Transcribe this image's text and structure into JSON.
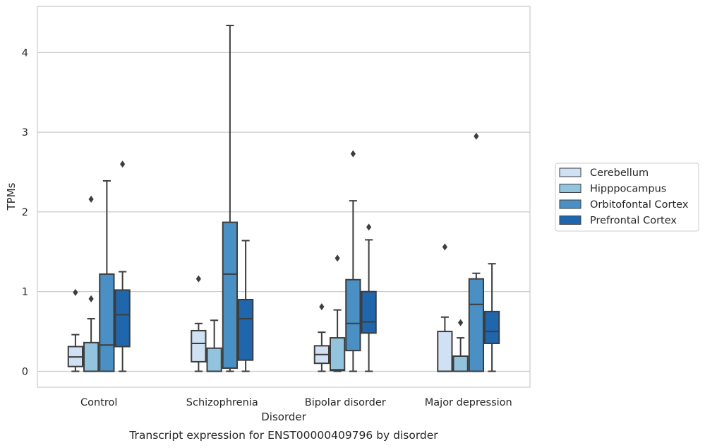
{
  "chart_data": {
    "type": "box",
    "title": "",
    "caption": "Transcript expression for ENST00000409796 by disorder",
    "xlabel": "Disorder",
    "ylabel": "TPMs",
    "ylim": [
      -0.2,
      4.58
    ],
    "yticks": [
      0,
      1,
      2,
      3,
      4
    ],
    "grid": "horizontal",
    "legend_position": "right",
    "categories": [
      "Control",
      "Schizophrenia",
      "Bipolar disorder",
      "Major depression"
    ],
    "series": [
      {
        "name": "Cerebellum",
        "color": "#cfe1f2",
        "boxes": [
          {
            "whisker_low": 0.0,
            "q1": 0.06,
            "median": 0.18,
            "q3": 0.31,
            "whisker_high": 0.46,
            "outliers": [
              0.99
            ]
          },
          {
            "whisker_low": 0.0,
            "q1": 0.12,
            "median": 0.35,
            "q3": 0.51,
            "whisker_high": 0.6,
            "outliers": [
              1.16
            ]
          },
          {
            "whisker_low": 0.0,
            "q1": 0.1,
            "median": 0.21,
            "q3": 0.32,
            "whisker_high": 0.49,
            "outliers": [
              0.81
            ]
          },
          {
            "whisker_low": 0.0,
            "q1": 0.0,
            "median": 0.0,
            "q3": 0.5,
            "whisker_high": 0.68,
            "outliers": [
              1.56
            ]
          }
        ]
      },
      {
        "name": "Hipppocampus",
        "color": "#93c4de",
        "boxes": [
          {
            "whisker_low": 0.0,
            "q1": 0.0,
            "median": 0.0,
            "q3": 0.36,
            "whisker_high": 0.66,
            "outliers": [
              0.91,
              2.16
            ]
          },
          {
            "whisker_low": 0.0,
            "q1": 0.0,
            "median": 0.0,
            "q3": 0.29,
            "whisker_high": 0.64,
            "outliers": []
          },
          {
            "whisker_low": 0.0,
            "q1": 0.01,
            "median": 0.02,
            "q3": 0.42,
            "whisker_high": 0.77,
            "outliers": [
              1.42
            ]
          },
          {
            "whisker_low": 0.0,
            "q1": 0.0,
            "median": 0.0,
            "q3": 0.19,
            "whisker_high": 0.42,
            "outliers": [
              0.61
            ]
          }
        ]
      },
      {
        "name": "Orbitofontal Cortex",
        "color": "#4a90c4",
        "boxes": [
          {
            "whisker_low": 0.0,
            "q1": 0.0,
            "median": 0.33,
            "q3": 1.22,
            "whisker_high": 2.39,
            "outliers": []
          },
          {
            "whisker_low": 0.0,
            "q1": 0.04,
            "median": 1.22,
            "q3": 1.87,
            "whisker_high": 4.34,
            "outliers": []
          },
          {
            "whisker_low": 0.0,
            "q1": 0.26,
            "median": 0.6,
            "q3": 1.15,
            "whisker_high": 2.14,
            "outliers": [
              2.73
            ]
          },
          {
            "whisker_low": 0.0,
            "q1": 0.0,
            "median": 0.84,
            "q3": 1.16,
            "whisker_high": 1.23,
            "outliers": [
              2.95
            ]
          }
        ]
      },
      {
        "name": "Prefrontal Cortex",
        "color": "#2066ac",
        "boxes": [
          {
            "whisker_low": 0.0,
            "q1": 0.31,
            "median": 0.71,
            "q3": 1.02,
            "whisker_high": 1.25,
            "outliers": [
              2.6
            ]
          },
          {
            "whisker_low": 0.0,
            "q1": 0.14,
            "median": 0.66,
            "q3": 0.9,
            "whisker_high": 1.64,
            "outliers": []
          },
          {
            "whisker_low": 0.0,
            "q1": 0.48,
            "median": 0.62,
            "q3": 1.0,
            "whisker_high": 1.65,
            "outliers": [
              1.81
            ]
          },
          {
            "whisker_low": 0.0,
            "q1": 0.35,
            "median": 0.5,
            "q3": 0.75,
            "whisker_high": 1.35,
            "outliers": []
          }
        ]
      }
    ]
  }
}
